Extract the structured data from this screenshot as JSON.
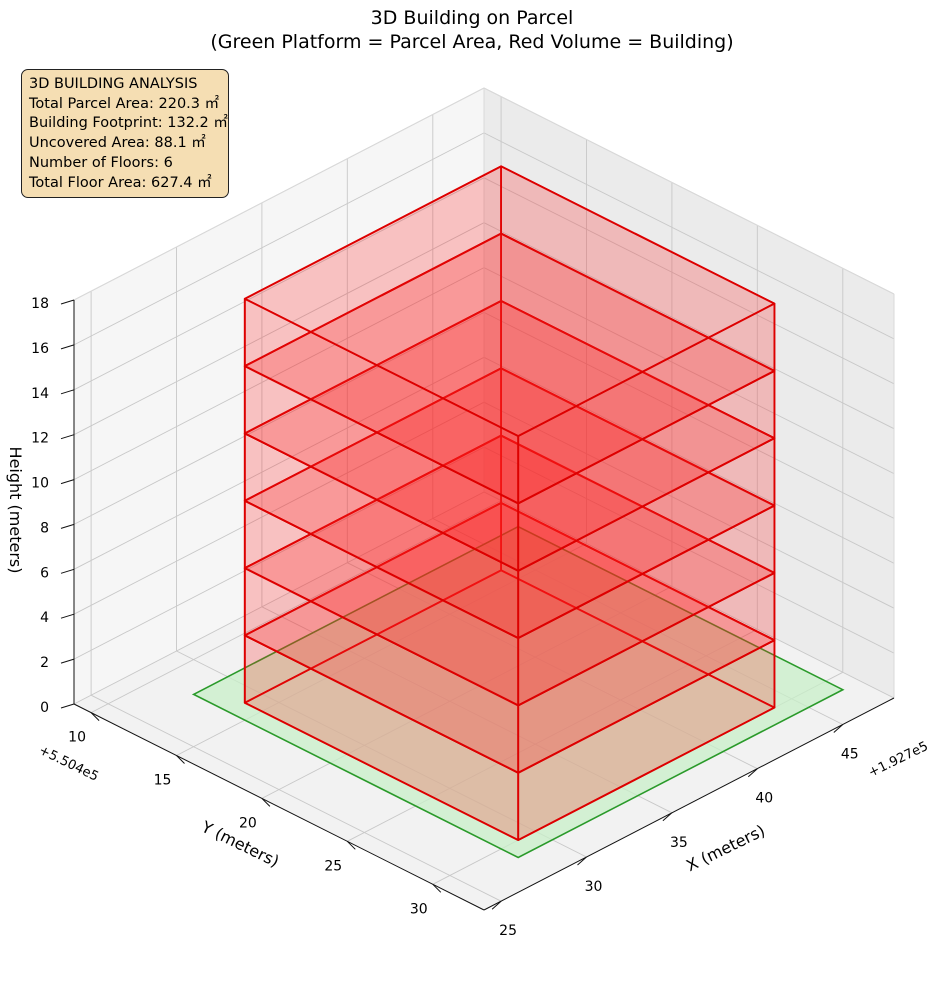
{
  "title": {
    "line1": "3D Building on Parcel",
    "line2": "(Green Platform = Parcel Area, Red Volume = Building)"
  },
  "info_box": {
    "heading": "3D BUILDING ANALYSIS",
    "lines": [
      "Total Parcel Area: 220.3 ㎡",
      "Building Footprint: 132.2 ㎡",
      "Uncovered Area: 88.1 ㎡",
      "Number of Floors: 6",
      "Total Floor Area: 627.4 ㎡"
    ],
    "background": "#f5deb3"
  },
  "chart_data": {
    "type": "3d-bar",
    "title": "3D Building on Parcel",
    "subtitle": "(Green Platform = Parcel Area, Red Volume = Building)",
    "xlabel": "X (meters)",
    "ylabel": "Y (meters)",
    "zlabel": "Height (meters)",
    "x_offset_label": "+1.927e5",
    "y_offset_label": "+5.504e5",
    "x_ticks": [
      25,
      30,
      35,
      40,
      45
    ],
    "y_ticks": [
      10,
      15,
      20,
      25,
      30
    ],
    "z_ticks": [
      0,
      2,
      4,
      6,
      8,
      10,
      12,
      14,
      16,
      18
    ],
    "xlim": [
      24,
      48
    ],
    "ylim": [
      9,
      33
    ],
    "zlim": [
      0,
      18
    ],
    "grid": true,
    "colors": {
      "parcel_fill": "#c8efc8",
      "parcel_edge": "#2a9a2a",
      "building_fill": "#ff2020",
      "building_edge": "#dd0000"
    },
    "parcel": {
      "x": [
        28,
        47
      ],
      "y": [
        12,
        31
      ],
      "z": 0
    },
    "floors": [
      {
        "floor": 1,
        "x": [
          29,
          44
        ],
        "y": [
          14,
          30
        ],
        "z": [
          0,
          3
        ]
      },
      {
        "floor": 2,
        "x": [
          29,
          44
        ],
        "y": [
          14,
          30
        ],
        "z": [
          3,
          6
        ]
      },
      {
        "floor": 3,
        "x": [
          29,
          44
        ],
        "y": [
          14,
          30
        ],
        "z": [
          6,
          9
        ]
      },
      {
        "floor": 4,
        "x": [
          29,
          44
        ],
        "y": [
          14,
          30
        ],
        "z": [
          9,
          12
        ]
      },
      {
        "floor": 5,
        "x": [
          29,
          44
        ],
        "y": [
          14,
          30
        ],
        "z": [
          12,
          15
        ]
      },
      {
        "floor": 6,
        "x": [
          29,
          44
        ],
        "y": [
          14,
          30
        ],
        "z": [
          15,
          18
        ]
      }
    ]
  }
}
